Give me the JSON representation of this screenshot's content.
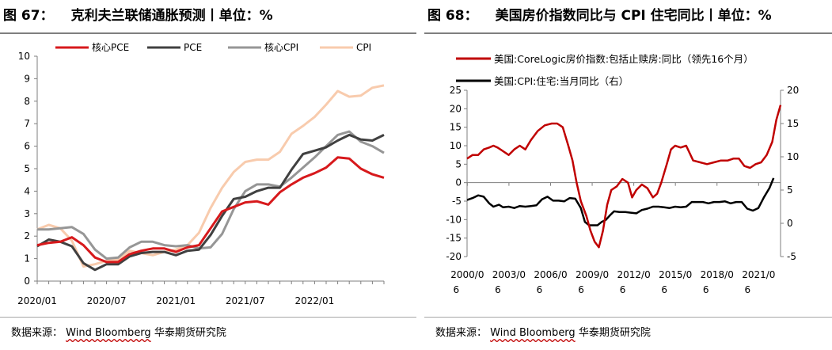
{
  "left": {
    "figure_no": "图 67：",
    "title": "克利夫兰联储通胀预测丨单位：%",
    "source_label": "数据来源：",
    "source_names": "Wind Bloomberg",
    "source_org": "华泰期货研究院"
  },
  "right": {
    "figure_no": "图 68：",
    "title": "美国房价指数同比与 CPI 住宅同比丨单位：%",
    "source_label": "数据来源：",
    "source_names": "Wind Bloomberg",
    "source_org": "华泰期货研究院"
  },
  "chart_data": [
    {
      "type": "line",
      "title": "克利夫兰联储通胀预测丨单位：%",
      "xlabel": "",
      "ylabel": "",
      "x": [
        "2020/01",
        "2020/02",
        "2020/03",
        "2020/04",
        "2020/05",
        "2020/06",
        "2020/07",
        "2020/08",
        "2020/09",
        "2020/10",
        "2020/11",
        "2020/12",
        "2021/01",
        "2021/02",
        "2021/03",
        "2021/04",
        "2021/05",
        "2021/06",
        "2021/07",
        "2021/08",
        "2021/09",
        "2021/10",
        "2021/11",
        "2021/12",
        "2022/01",
        "2022/02",
        "2022/03",
        "2022/04",
        "2022/05",
        "2022/06",
        "2022/07"
      ],
      "x_ticks": [
        "2020/01",
        "2020/07",
        "2021/01",
        "2021/07",
        "2022/01"
      ],
      "ylim": [
        0,
        10
      ],
      "y_ticks": [
        0,
        1,
        2,
        3,
        4,
        5,
        6,
        7,
        8,
        9,
        10
      ],
      "legend_position": "top",
      "grid": false,
      "series": [
        {
          "name": "核心PCE",
          "color": "#d7191c",
          "values": [
            1.6,
            1.7,
            1.75,
            1.95,
            1.6,
            1.05,
            0.85,
            0.85,
            1.2,
            1.35,
            1.45,
            1.45,
            1.3,
            1.5,
            1.6,
            2.35,
            3.1,
            3.3,
            3.5,
            3.55,
            3.4,
            3.95,
            4.3,
            4.6,
            4.8,
            5.05,
            5.5,
            5.45,
            5.0,
            4.75,
            4.6
          ]
        },
        {
          "name": "PCE",
          "color": "#404040",
          "values": [
            1.55,
            1.85,
            1.75,
            1.55,
            0.8,
            0.5,
            0.75,
            0.75,
            1.1,
            1.25,
            1.3,
            1.3,
            1.15,
            1.35,
            1.4,
            2.05,
            2.9,
            3.65,
            3.75,
            4.0,
            4.15,
            4.15,
            4.95,
            5.65,
            5.8,
            5.95,
            6.25,
            6.5,
            6.3,
            6.25,
            6.5
          ]
        },
        {
          "name": "核心CPI",
          "color": "#969696",
          "values": [
            2.3,
            2.3,
            2.35,
            2.4,
            2.1,
            1.4,
            1.0,
            1.05,
            1.5,
            1.75,
            1.75,
            1.6,
            1.55,
            1.6,
            1.45,
            1.5,
            2.1,
            3.2,
            4.0,
            4.3,
            4.3,
            4.2,
            4.6,
            5.05,
            5.5,
            6.0,
            6.5,
            6.65,
            6.2,
            6.0,
            5.7
          ]
        },
        {
          "name": "CPI",
          "color": "#f8cbad",
          "values": [
            2.3,
            2.5,
            2.35,
            1.8,
            0.65,
            0.75,
            0.9,
            0.95,
            1.35,
            1.25,
            1.15,
            1.3,
            1.4,
            1.6,
            2.15,
            3.25,
            4.15,
            4.85,
            5.3,
            5.4,
            5.4,
            5.75,
            6.55,
            6.9,
            7.3,
            7.85,
            8.45,
            8.2,
            8.25,
            8.6,
            8.7
          ]
        }
      ]
    },
    {
      "type": "line",
      "title": "美国房价指数同比与 CPI 住宅同比丨单位：%",
      "xlabel": "",
      "ylabel": "",
      "x_ticks": [
        "2000/06",
        "2003/06",
        "2006/06",
        "2009/06",
        "2012/06",
        "2015/06",
        "2018/06",
        "2021/06"
      ],
      "xlim": [
        2000.4,
        2023.0
      ],
      "ylim_left": [
        -20,
        25
      ],
      "y_ticks_left": [
        -20,
        -15,
        -10,
        -5,
        0,
        5,
        10,
        15,
        20,
        25
      ],
      "ylim_right": [
        -5,
        20
      ],
      "y_ticks_right": [
        -5,
        0,
        5,
        10,
        15,
        20
      ],
      "legend_position": "top-left",
      "grid": false,
      "series": [
        {
          "name": "美国:CoreLogic房价指数:包括止赎房:同比（领先16个月）",
          "color": "#c00000",
          "axis": "left",
          "x": [
            2000.4,
            2000.8,
            2001.2,
            2001.6,
            2002.0,
            2002.3,
            2002.6,
            2003.0,
            2003.4,
            2003.8,
            2004.2,
            2004.6,
            2005.0,
            2005.5,
            2006.0,
            2006.5,
            2006.9,
            2007.3,
            2007.7,
            2008.0,
            2008.3,
            2008.6,
            2009.0,
            2009.3,
            2009.6,
            2009.9,
            2010.2,
            2010.5,
            2010.8,
            2011.2,
            2011.6,
            2012.0,
            2012.3,
            2012.6,
            2013.0,
            2013.4,
            2013.8,
            2014.1,
            2014.4,
            2014.8,
            2015.1,
            2015.4,
            2015.8,
            2016.2,
            2016.7,
            2017.2,
            2017.7,
            2018.2,
            2018.7,
            2019.2,
            2019.6,
            2020.0,
            2020.4,
            2020.8,
            2021.2,
            2021.6,
            2022.0,
            2022.4,
            2022.7,
            2023.0
          ],
          "values": [
            6.5,
            7.5,
            7.5,
            9.0,
            9.5,
            10.0,
            9.5,
            8.5,
            7.5,
            9.0,
            10.0,
            9.0,
            11.5,
            14.0,
            15.5,
            16.0,
            16.0,
            15.0,
            10.0,
            6.0,
            0.0,
            -5.0,
            -9.0,
            -13.0,
            -16.0,
            -17.5,
            -13.0,
            -6.0,
            -2.0,
            -1.0,
            1.0,
            0.0,
            -4.0,
            -2.0,
            -0.5,
            -1.5,
            -4.0,
            -3.0,
            0.0,
            5.0,
            9.0,
            10.0,
            9.5,
            10.0,
            6.0,
            5.5,
            5.0,
            5.5,
            6.0,
            6.0,
            6.5,
            6.5,
            4.5,
            4.0,
            5.0,
            5.5,
            7.5,
            11.0,
            17.0,
            21.0
          ]
        },
        {
          "name": "美国:CPI:住宅:当月同比（右）",
          "color": "#000000",
          "axis": "right",
          "x": [
            2000.4,
            2000.8,
            2001.2,
            2001.6,
            2002.0,
            2002.3,
            2002.7,
            2003.0,
            2003.4,
            2003.8,
            2004.2,
            2004.6,
            2005.0,
            2005.4,
            2005.8,
            2006.2,
            2006.6,
            2007.0,
            2007.4,
            2007.8,
            2008.2,
            2008.6,
            2008.9,
            2009.2,
            2009.5,
            2009.8,
            2010.1,
            2010.4,
            2010.7,
            2011.0,
            2011.4,
            2011.8,
            2012.2,
            2012.6,
            2013.0,
            2013.4,
            2013.8,
            2014.2,
            2014.6,
            2015.0,
            2015.4,
            2015.8,
            2016.2,
            2016.6,
            2017.0,
            2017.4,
            2017.8,
            2018.2,
            2018.6,
            2019.0,
            2019.4,
            2019.8,
            2020.2,
            2020.6,
            2021.0,
            2021.4,
            2021.8,
            2022.2,
            2022.5
          ],
          "values": [
            3.5,
            3.8,
            4.2,
            4.0,
            3.0,
            2.5,
            2.8,
            2.4,
            2.5,
            2.3,
            2.6,
            2.5,
            2.6,
            2.7,
            3.6,
            4.0,
            3.4,
            3.4,
            3.3,
            3.8,
            3.7,
            2.3,
            0.2,
            -0.3,
            -0.3,
            -0.3,
            0.2,
            0.5,
            1.2,
            1.8,
            1.7,
            1.7,
            1.6,
            1.5,
            2.0,
            2.2,
            2.5,
            2.5,
            2.4,
            2.3,
            2.5,
            2.4,
            2.5,
            3.2,
            3.2,
            3.2,
            3.0,
            3.2,
            3.2,
            3.3,
            3.0,
            3.2,
            3.2,
            2.2,
            1.9,
            2.3,
            3.9,
            5.3,
            6.8
          ]
        }
      ]
    }
  ]
}
